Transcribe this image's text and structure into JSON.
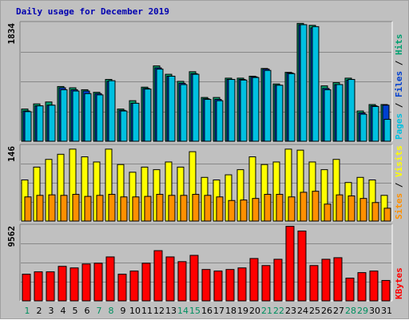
{
  "title": "Daily usage for December 2019",
  "colors": {
    "pages": "#00c0e0",
    "files": "#0040d0",
    "hits": "#00a070",
    "visits": "#ffff00",
    "sites": "#ff9000",
    "kbytes": "#ff0000",
    "weekend_label": "#009060",
    "weekday_label": "#000000"
  },
  "chart_data": [
    {
      "type": "bar",
      "title": "",
      "legend": [
        "Pages",
        "Files",
        "Hits"
      ],
      "ymax_label": "1834",
      "ylim": [
        0,
        1834
      ],
      "grid": true,
      "categories": [
        "1",
        "2",
        "3",
        "4",
        "5",
        "6",
        "7",
        "8",
        "9",
        "10",
        "11",
        "12",
        "13",
        "14",
        "15",
        "16",
        "17",
        "18",
        "19",
        "20",
        "21",
        "22",
        "23",
        "24",
        "25",
        "26",
        "27",
        "28",
        "29",
        "30",
        "31"
      ],
      "weekend": [
        1,
        7,
        8,
        14,
        15,
        21,
        22,
        28,
        29
      ],
      "series": [
        {
          "name": "Hits",
          "values": [
            500,
            580,
            610,
            850,
            830,
            800,
            760,
            960,
            500,
            630,
            840,
            1170,
            1040,
            930,
            1080,
            680,
            680,
            980,
            980,
            1010,
            1130,
            890,
            1070,
            1830,
            1800,
            860,
            910,
            980,
            470,
            570,
            570
          ]
        },
        {
          "name": "Files",
          "values": [
            470,
            550,
            560,
            830,
            800,
            780,
            740,
            930,
            480,
            590,
            820,
            1140,
            1010,
            900,
            1050,
            660,
            650,
            960,
            960,
            1000,
            1120,
            870,
            1060,
            1810,
            1760,
            820,
            880,
            950,
            440,
            550,
            560
          ]
        },
        {
          "name": "Pages",
          "values": [
            460,
            550,
            560,
            800,
            780,
            740,
            720,
            940,
            470,
            590,
            810,
            1120,
            1010,
            880,
            1040,
            650,
            630,
            960,
            950,
            990,
            1100,
            870,
            1050,
            1810,
            1780,
            800,
            880,
            960,
            420,
            540,
            340
          ]
        }
      ]
    },
    {
      "type": "bar",
      "title": "",
      "legend": [
        "Sites",
        "Visits"
      ],
      "ymax_label": "146",
      "ylim": [
        0,
        146
      ],
      "grid": true,
      "categories": [
        "1",
        "2",
        "3",
        "4",
        "5",
        "6",
        "7",
        "8",
        "9",
        "10",
        "11",
        "12",
        "13",
        "14",
        "15",
        "16",
        "17",
        "18",
        "19",
        "20",
        "21",
        "22",
        "23",
        "24",
        "25",
        "26",
        "27",
        "28",
        "29",
        "30",
        "31"
      ],
      "series": [
        {
          "name": "Visits",
          "values": [
            80,
            105,
            120,
            130,
            140,
            125,
            115,
            140,
            110,
            95,
            105,
            100,
            115,
            105,
            135,
            85,
            80,
            90,
            100,
            125,
            110,
            115,
            140,
            138,
            115,
            100,
            120,
            75,
            85,
            80,
            50
          ]
        },
        {
          "name": "Sites",
          "values": [
            47,
            50,
            51,
            50,
            52,
            48,
            50,
            52,
            47,
            47,
            48,
            52,
            50,
            50,
            52,
            50,
            47,
            40,
            41,
            44,
            52,
            52,
            47,
            56,
            58,
            33,
            51,
            49,
            44,
            36,
            25
          ]
        }
      ]
    },
    {
      "type": "bar",
      "title": "",
      "legend": [
        "KBytes"
      ],
      "ymax_label": "9562",
      "ylim": [
        0,
        9562
      ],
      "grid": true,
      "categories": [
        "1",
        "2",
        "3",
        "4",
        "5",
        "6",
        "7",
        "8",
        "9",
        "10",
        "11",
        "12",
        "13",
        "14",
        "15",
        "16",
        "17",
        "18",
        "19",
        "20",
        "21",
        "22",
        "23",
        "24",
        "25",
        "26",
        "27",
        "28",
        "29",
        "30",
        "31"
      ],
      "series": [
        {
          "name": "KBytes",
          "values": [
            3400,
            3700,
            3700,
            4400,
            4200,
            4700,
            4800,
            5600,
            3400,
            3800,
            4800,
            6400,
            5600,
            5000,
            5800,
            4000,
            3800,
            4000,
            4200,
            5400,
            4500,
            5300,
            9500,
            8900,
            4500,
            5300,
            5500,
            2900,
            3600,
            3800,
            2600
          ]
        }
      ]
    }
  ]
}
